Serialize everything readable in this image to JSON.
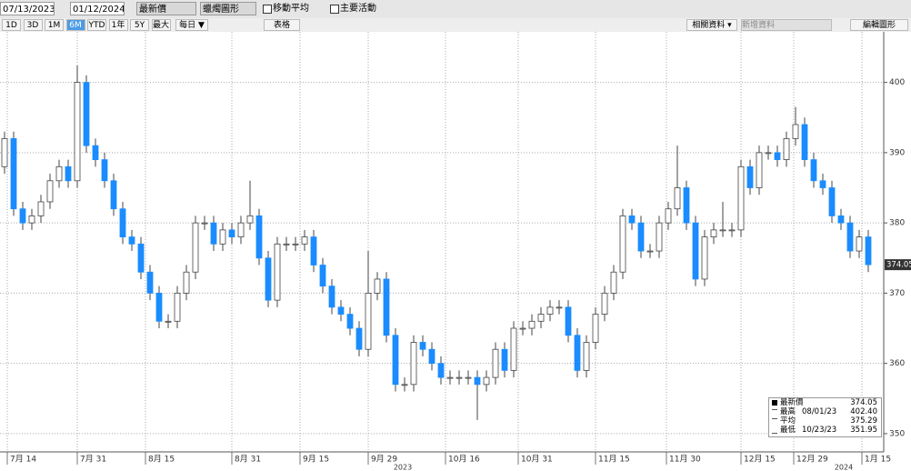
{
  "toolbar": {
    "start_date": "07/13/2023",
    "end_date": "01/12/2024",
    "price_field": "最新價",
    "chart_style": "蠟燭圖形",
    "moving_average": "移動平均",
    "key_events": "主要活動",
    "periods": [
      "1D",
      "3D",
      "1M",
      "6M",
      "YTD",
      "1年",
      "5Y",
      "最大"
    ],
    "frequency": "每日 ▼",
    "table": "表格",
    "related": "相關資料 ▾",
    "add_data": "新增資料",
    "edit_chart": "編輯圖形"
  },
  "chart_data": {
    "type": "candlestick",
    "up_color": "#ffffff",
    "down_color": "#1a8cff",
    "x": [
      0,
      1,
      2,
      3,
      4,
      5,
      6,
      7,
      8,
      9,
      10,
      11,
      12,
      13,
      14,
      15,
      16,
      17,
      18,
      19,
      20,
      21,
      22,
      23,
      24,
      25,
      26,
      27,
      28,
      29,
      30,
      31,
      32,
      33,
      34,
      35,
      36,
      37,
      38,
      39,
      40,
      41,
      42,
      43,
      44,
      45,
      46,
      47,
      48,
      49,
      50,
      51,
      52,
      53,
      54,
      55,
      56,
      57,
      58,
      59,
      60,
      61,
      62,
      63,
      64,
      65,
      66,
      67,
      68,
      69,
      70,
      71,
      72,
      73,
      74,
      75,
      76,
      77,
      78,
      79,
      80,
      81,
      82,
      83,
      84,
      85,
      86,
      87,
      88,
      89,
      90,
      91,
      92,
      93,
      94,
      95
    ],
    "open": [
      388,
      392,
      382,
      380,
      381,
      383,
      386,
      388,
      386,
      400,
      391,
      389,
      386,
      382,
      378,
      377,
      373,
      370,
      366,
      366,
      370,
      373,
      380,
      380,
      377,
      379,
      378,
      380,
      381,
      375,
      369,
      377,
      377,
      377,
      378,
      374,
      371,
      368,
      367,
      365,
      362,
      370,
      372,
      364,
      357,
      357,
      363,
      362,
      360,
      358,
      358,
      358,
      358,
      357,
      358,
      362,
      359,
      365,
      365,
      366,
      367,
      368,
      368,
      364,
      359,
      363,
      367,
      370,
      373,
      381,
      380,
      376,
      376,
      380,
      382,
      385,
      380,
      372,
      378,
      379,
      379,
      379,
      388,
      385,
      390,
      390,
      389,
      392,
      394,
      389,
      386,
      385,
      381,
      380,
      376,
      378
    ],
    "high": [
      393,
      393,
      383,
      382,
      384,
      387,
      389,
      389,
      402.4,
      401,
      392,
      390,
      387,
      383,
      379,
      378,
      374,
      371,
      367,
      371,
      374,
      381,
      381,
      381,
      380,
      380,
      381,
      386,
      382,
      376,
      378,
      378,
      378,
      379,
      379,
      375,
      372,
      369,
      368,
      366,
      376,
      373,
      373,
      365,
      358,
      364,
      364,
      363,
      361,
      359,
      359,
      359,
      359,
      359,
      363,
      363,
      366,
      366,
      367,
      368,
      369,
      369,
      369,
      365,
      364,
      368,
      371,
      374,
      382,
      382,
      381,
      377,
      381,
      383,
      391,
      386,
      381,
      379,
      380,
      383,
      380,
      389,
      389,
      391,
      391,
      391,
      393,
      396.5,
      395,
      390,
      387,
      386,
      382,
      381,
      379,
      379
    ],
    "low": [
      387,
      381,
      379,
      379,
      380,
      382,
      385,
      385,
      385,
      390,
      388,
      385,
      381,
      377,
      376,
      372,
      369,
      365,
      365,
      365,
      369,
      372,
      379,
      376,
      376,
      377,
      377,
      379,
      374,
      368,
      368,
      376,
      376,
      376,
      373,
      370,
      367,
      366,
      364,
      361,
      361,
      369,
      363,
      356,
      356,
      356,
      361,
      359,
      357,
      357,
      357,
      357,
      351.95,
      356,
      357,
      358,
      358,
      364,
      364,
      365,
      366,
      367,
      363,
      358,
      358,
      362,
      366,
      369,
      372,
      379,
      375,
      375,
      375,
      379,
      381,
      379,
      371,
      371,
      377,
      378,
      378,
      378,
      384,
      384,
      389,
      388,
      388,
      391,
      388,
      385,
      384,
      380,
      379,
      375,
      375,
      373
    ],
    "close": [
      392,
      382,
      380,
      381,
      383,
      386,
      388,
      386,
      400,
      391,
      389,
      386,
      382,
      378,
      377,
      373,
      370,
      366,
      366,
      370,
      373,
      380,
      380,
      377,
      379,
      378,
      380,
      381,
      375,
      369,
      377,
      377,
      377,
      378,
      374,
      371,
      368,
      367,
      365,
      362,
      370,
      372,
      364,
      357,
      357,
      363,
      362,
      360,
      358,
      358,
      358,
      358,
      357,
      358,
      362,
      359,
      365,
      365,
      366,
      367,
      368,
      368,
      364,
      359,
      363,
      367,
      370,
      373,
      381,
      380,
      376,
      376,
      380,
      382,
      385,
      380,
      372,
      378,
      379,
      379,
      379,
      388,
      385,
      390,
      390,
      389,
      392,
      394,
      389,
      386,
      385,
      381,
      380,
      376,
      378,
      374.05
    ],
    "xlim": [
      -0.5,
      96.7
    ],
    "ylim": [
      347.4,
      407.2
    ],
    "yticks": [
      350,
      360,
      370,
      380,
      390,
      400
    ],
    "grid": true,
    "xticks": [
      {
        "value": 0.3,
        "label": "7月 14"
      },
      {
        "value": 8,
        "label": "7月 31"
      },
      {
        "value": 15.5,
        "label": "8月 15"
      },
      {
        "value": 25,
        "label": "8月 31"
      },
      {
        "value": 32.5,
        "label": "9月 15"
      },
      {
        "value": 40,
        "label": "9月 29"
      },
      {
        "value": 48.5,
        "label": "10月 16"
      },
      {
        "value": 56.5,
        "label": "10月 31"
      },
      {
        "value": 65,
        "label": "11月 15"
      },
      {
        "value": 72.8,
        "label": "11月 30"
      },
      {
        "value": 81,
        "label": "12月 15"
      },
      {
        "value": 86.8,
        "label": "12月 29"
      },
      {
        "value": 94.3,
        "label": "1月 15"
      }
    ],
    "year_ticks": [
      {
        "value": 43.8,
        "label": "2023"
      },
      {
        "value": 92.3,
        "label": "2024"
      }
    ],
    "legend": [
      {
        "label": "最新價",
        "value": 374.05
      },
      {
        "label": "最高",
        "date": "08/01/23",
        "value": 402.4,
        "value_label": "402.40"
      },
      {
        "label": "平均",
        "value": 375.29
      },
      {
        "label": "最低",
        "date": "10/23/23",
        "value": 351.95
      }
    ]
  }
}
